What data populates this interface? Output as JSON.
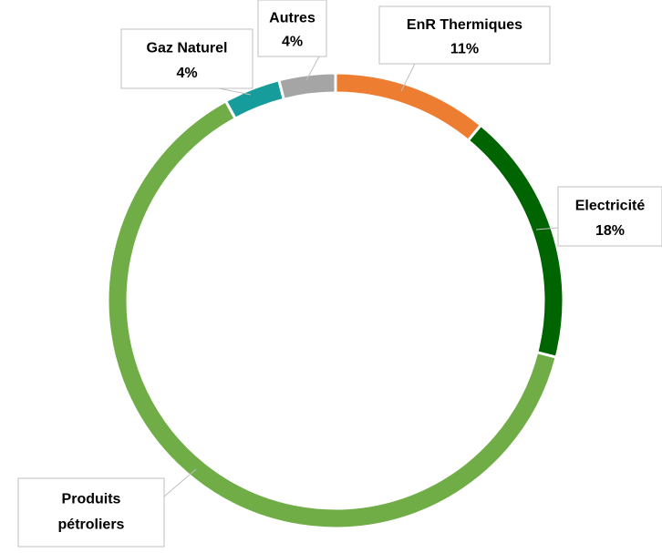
{
  "chart_data": {
    "type": "donut",
    "categories": [
      "EnR Thermiques",
      "Electricité",
      "Produits pétroliers",
      "Gaz Naturel",
      "Autres"
    ],
    "values": [
      11,
      18,
      63,
      4,
      4
    ],
    "value_labels": [
      "11%",
      "18%",
      null,
      "4%",
      "4%"
    ],
    "colors": [
      "#ED7D31",
      "#006400",
      "#70AD47",
      "#179C9C",
      "#A5A5A5"
    ]
  }
}
